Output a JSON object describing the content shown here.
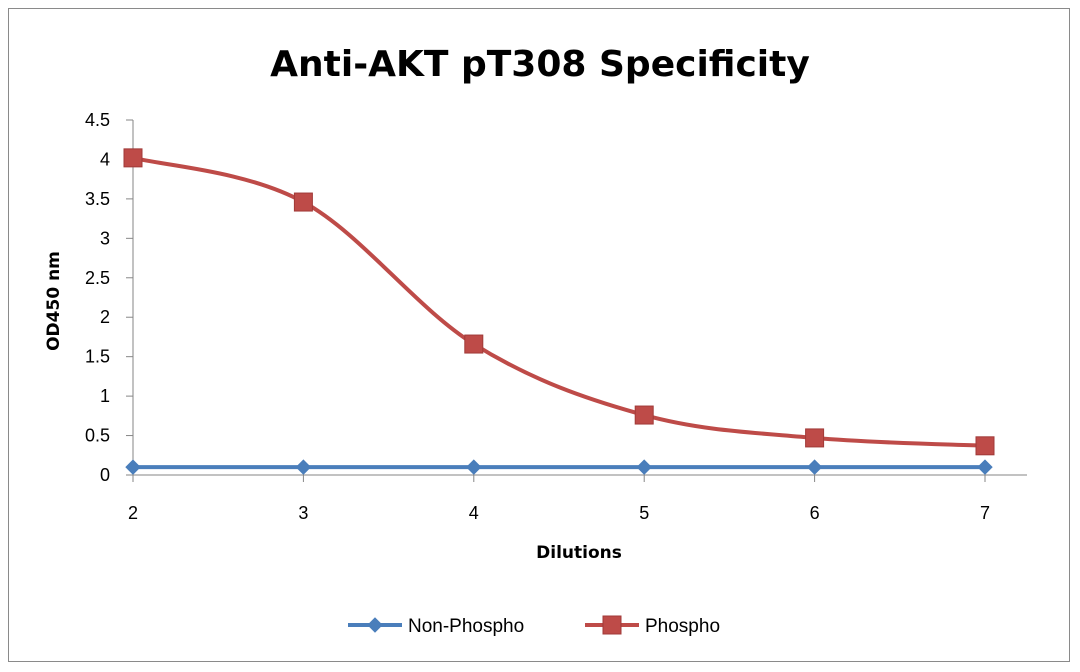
{
  "chart_data": {
    "type": "line",
    "title": "Anti-AKT pT308 Specificity",
    "xlabel": "Dilutions",
    "ylabel": "OD450 nm",
    "x": [
      2,
      3,
      4,
      5,
      6,
      7
    ],
    "x_tick_labels": [
      "2",
      "3",
      "4",
      "5",
      "6",
      "7"
    ],
    "y_tick_labels": [
      "0",
      "0.5",
      "1",
      "1.5",
      "2",
      "2.5",
      "3",
      "3.5",
      "4",
      "4.5"
    ],
    "ylim": [
      0,
      4.5
    ],
    "grid": false,
    "legend_position": "bottom",
    "series": [
      {
        "name": "Non-Phospho",
        "values": [
          0.1,
          0.1,
          0.1,
          0.1,
          0.1,
          0.1
        ],
        "color": "#4a7ebb",
        "marker": "diamond",
        "smooth": false
      },
      {
        "name": "Phospho",
        "values": [
          4.02,
          3.46,
          1.66,
          0.76,
          0.47,
          0.37
        ],
        "color": "#be4b48",
        "marker": "square",
        "smooth": true
      }
    ]
  }
}
